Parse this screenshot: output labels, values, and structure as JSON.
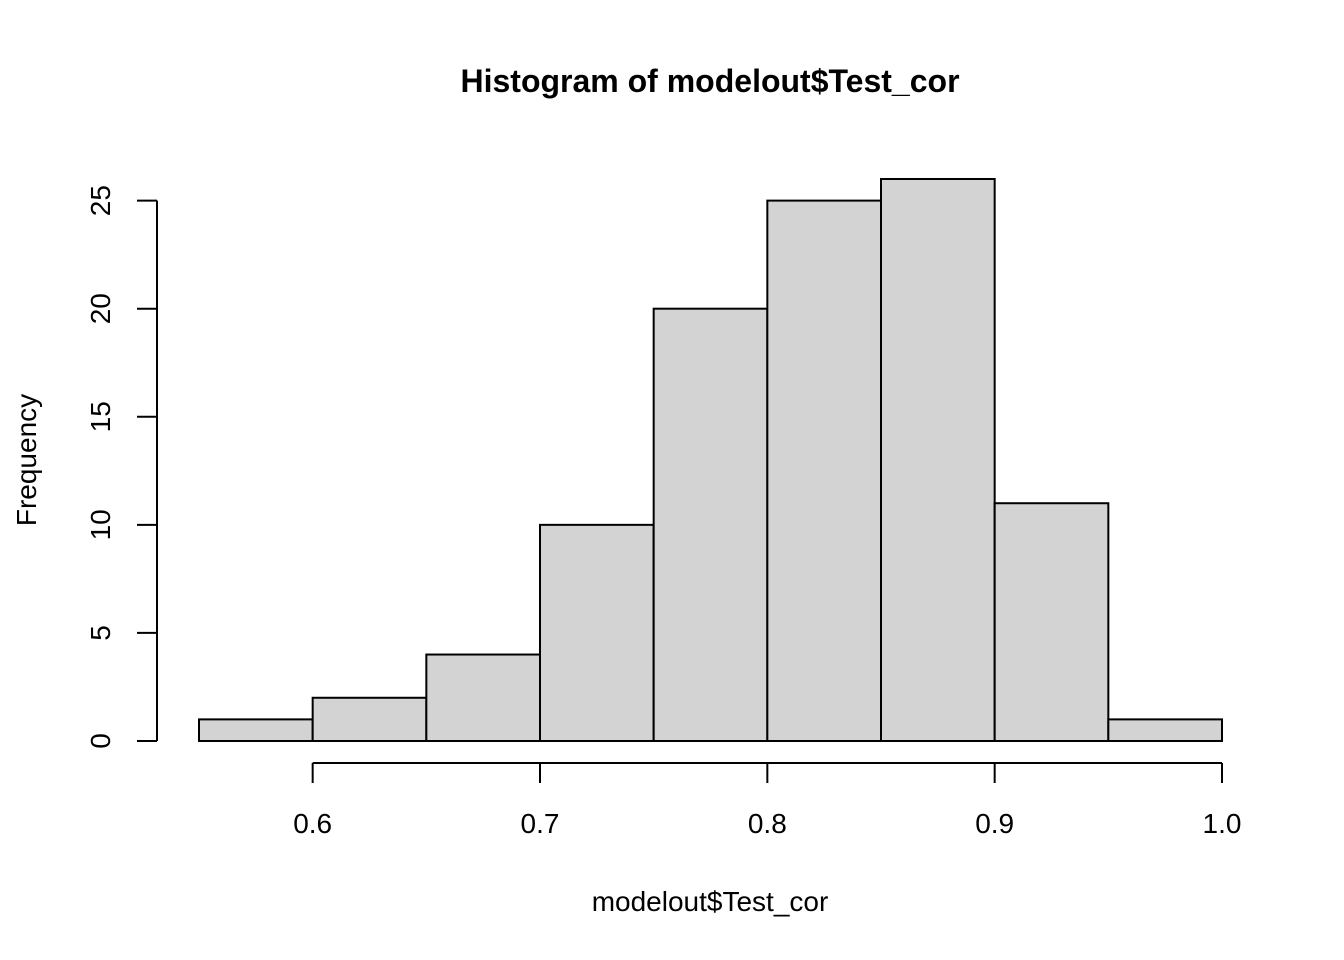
{
  "chart_data": {
    "type": "bar",
    "title": "Histogram of modelout$Test_cor",
    "xlabel": "modelout$Test_cor",
    "ylabel": "Frequency",
    "bin_edges": [
      0.55,
      0.6,
      0.65,
      0.7,
      0.75,
      0.8,
      0.85,
      0.9,
      0.95,
      1.0
    ],
    "values": [
      1,
      2,
      4,
      10,
      20,
      25,
      26,
      11,
      1
    ],
    "xlim": [
      0.55,
      1.0
    ],
    "ylim": [
      0,
      26
    ],
    "x_ticks": [
      0.6,
      0.7,
      0.8,
      0.9,
      1.0
    ],
    "x_tick_labels": [
      "0.6",
      "0.7",
      "0.8",
      "0.9",
      "1.0"
    ],
    "y_ticks": [
      0,
      5,
      10,
      15,
      20,
      25
    ],
    "y_tick_labels": [
      "0",
      "5",
      "10",
      "15",
      "20",
      "25"
    ],
    "bar_fill": "#d3d3d3",
    "bar_stroke": "#000000",
    "grid": false,
    "legend": "none"
  }
}
